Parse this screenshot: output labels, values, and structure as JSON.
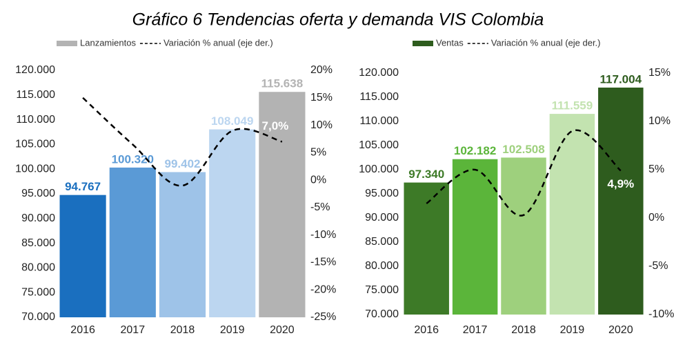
{
  "title": "Gráfico 6 Tendencias oferta y demanda VIS Colombia",
  "chart_data": [
    {
      "type": "bar",
      "categories": [
        "2016",
        "2017",
        "2018",
        "2019",
        "2020"
      ],
      "series": [
        {
          "name": "Lanzamientos",
          "color": "#b3b3b3",
          "colors": [
            "#1a6fbf",
            "#5a9ad6",
            "#9ec3e8",
            "#bcd6f0",
            "#b3b3b3"
          ],
          "values": [
            94767,
            100320,
            99402,
            108049,
            115638
          ],
          "value_labels": [
            "94.767",
            "100.320",
            "99.402",
            "108.049",
            "115.638"
          ]
        },
        {
          "name": "Variación % anual (eje der.)",
          "type": "line",
          "color": "#000000",
          "dashed": true,
          "axis": "y2",
          "values": [
            15,
            6.5,
            -1,
            9,
            7
          ],
          "value_labels": [
            null,
            null,
            null,
            null,
            "7,0%"
          ]
        }
      ],
      "ylim": [
        70000,
        120000
      ],
      "yticks": [
        {
          "value": 70000,
          "label": "70.000"
        },
        {
          "value": 75000,
          "label": "75.000"
        },
        {
          "value": 80000,
          "label": "80.000"
        },
        {
          "value": 85000,
          "label": "85.000"
        },
        {
          "value": 90000,
          "label": "90.000"
        },
        {
          "value": 95000,
          "label": "95.000"
        },
        {
          "value": 100000,
          "label": "100.000"
        },
        {
          "value": 105000,
          "label": "105.000"
        },
        {
          "value": 110000,
          "label": "110.000"
        },
        {
          "value": 115000,
          "label": "115.000"
        },
        {
          "value": 120000,
          "label": "120.000"
        }
      ],
      "y2lim": [
        -25,
        20
      ],
      "y2ticks": [
        {
          "value": -25,
          "label": "-25%"
        },
        {
          "value": -20,
          "label": "-20%"
        },
        {
          "value": -15,
          "label": "-15%"
        },
        {
          "value": -10,
          "label": "-10%"
        },
        {
          "value": -5,
          "label": "-5%"
        },
        {
          "value": 0,
          "label": "0%"
        },
        {
          "value": 5,
          "label": "5%"
        },
        {
          "value": 10,
          "label": "10%"
        },
        {
          "value": 15,
          "label": "15%"
        },
        {
          "value": 20,
          "label": "20%"
        }
      ]
    },
    {
      "type": "bar",
      "categories": [
        "2016",
        "2017",
        "2018",
        "2019",
        "2020"
      ],
      "series": [
        {
          "name": "Ventas",
          "color": "#2e5c1e",
          "colors": [
            "#3d7a27",
            "#5bb53a",
            "#9ed07d",
            "#c3e3b0",
            "#2e5c1e"
          ],
          "values": [
            97340,
            102182,
            102508,
            111559,
            117004
          ],
          "value_labels": [
            "97.340",
            "102.182",
            "102.508",
            "111.559",
            "117.004"
          ]
        },
        {
          "name": "Variación % anual (eje der.)",
          "type": "line",
          "color": "#000000",
          "dashed": true,
          "axis": "y2",
          "values": [
            1.5,
            5,
            0.3,
            9,
            4.9
          ],
          "value_labels": [
            null,
            null,
            null,
            null,
            "4,9%"
          ]
        }
      ],
      "ylim": [
        70000,
        120000
      ],
      "yticks": [
        {
          "value": 70000,
          "label": "70.000"
        },
        {
          "value": 75000,
          "label": "75.000"
        },
        {
          "value": 80000,
          "label": "80.000"
        },
        {
          "value": 85000,
          "label": "85.000"
        },
        {
          "value": 90000,
          "label": "90.000"
        },
        {
          "value": 95000,
          "label": "95.000"
        },
        {
          "value": 100000,
          "label": "100.000"
        },
        {
          "value": 105000,
          "label": "105.000"
        },
        {
          "value": 110000,
          "label": "110.000"
        },
        {
          "value": 115000,
          "label": "115.000"
        },
        {
          "value": 120000,
          "label": "120.000"
        }
      ],
      "y2lim": [
        -10,
        15
      ],
      "y2ticks": [
        {
          "value": -10,
          "label": "-10%"
        },
        {
          "value": -5,
          "label": "-5%"
        },
        {
          "value": 0,
          "label": "0%"
        },
        {
          "value": 5,
          "label": "5%"
        },
        {
          "value": 10,
          "label": "10%"
        },
        {
          "value": 15,
          "label": "15%"
        }
      ]
    }
  ]
}
